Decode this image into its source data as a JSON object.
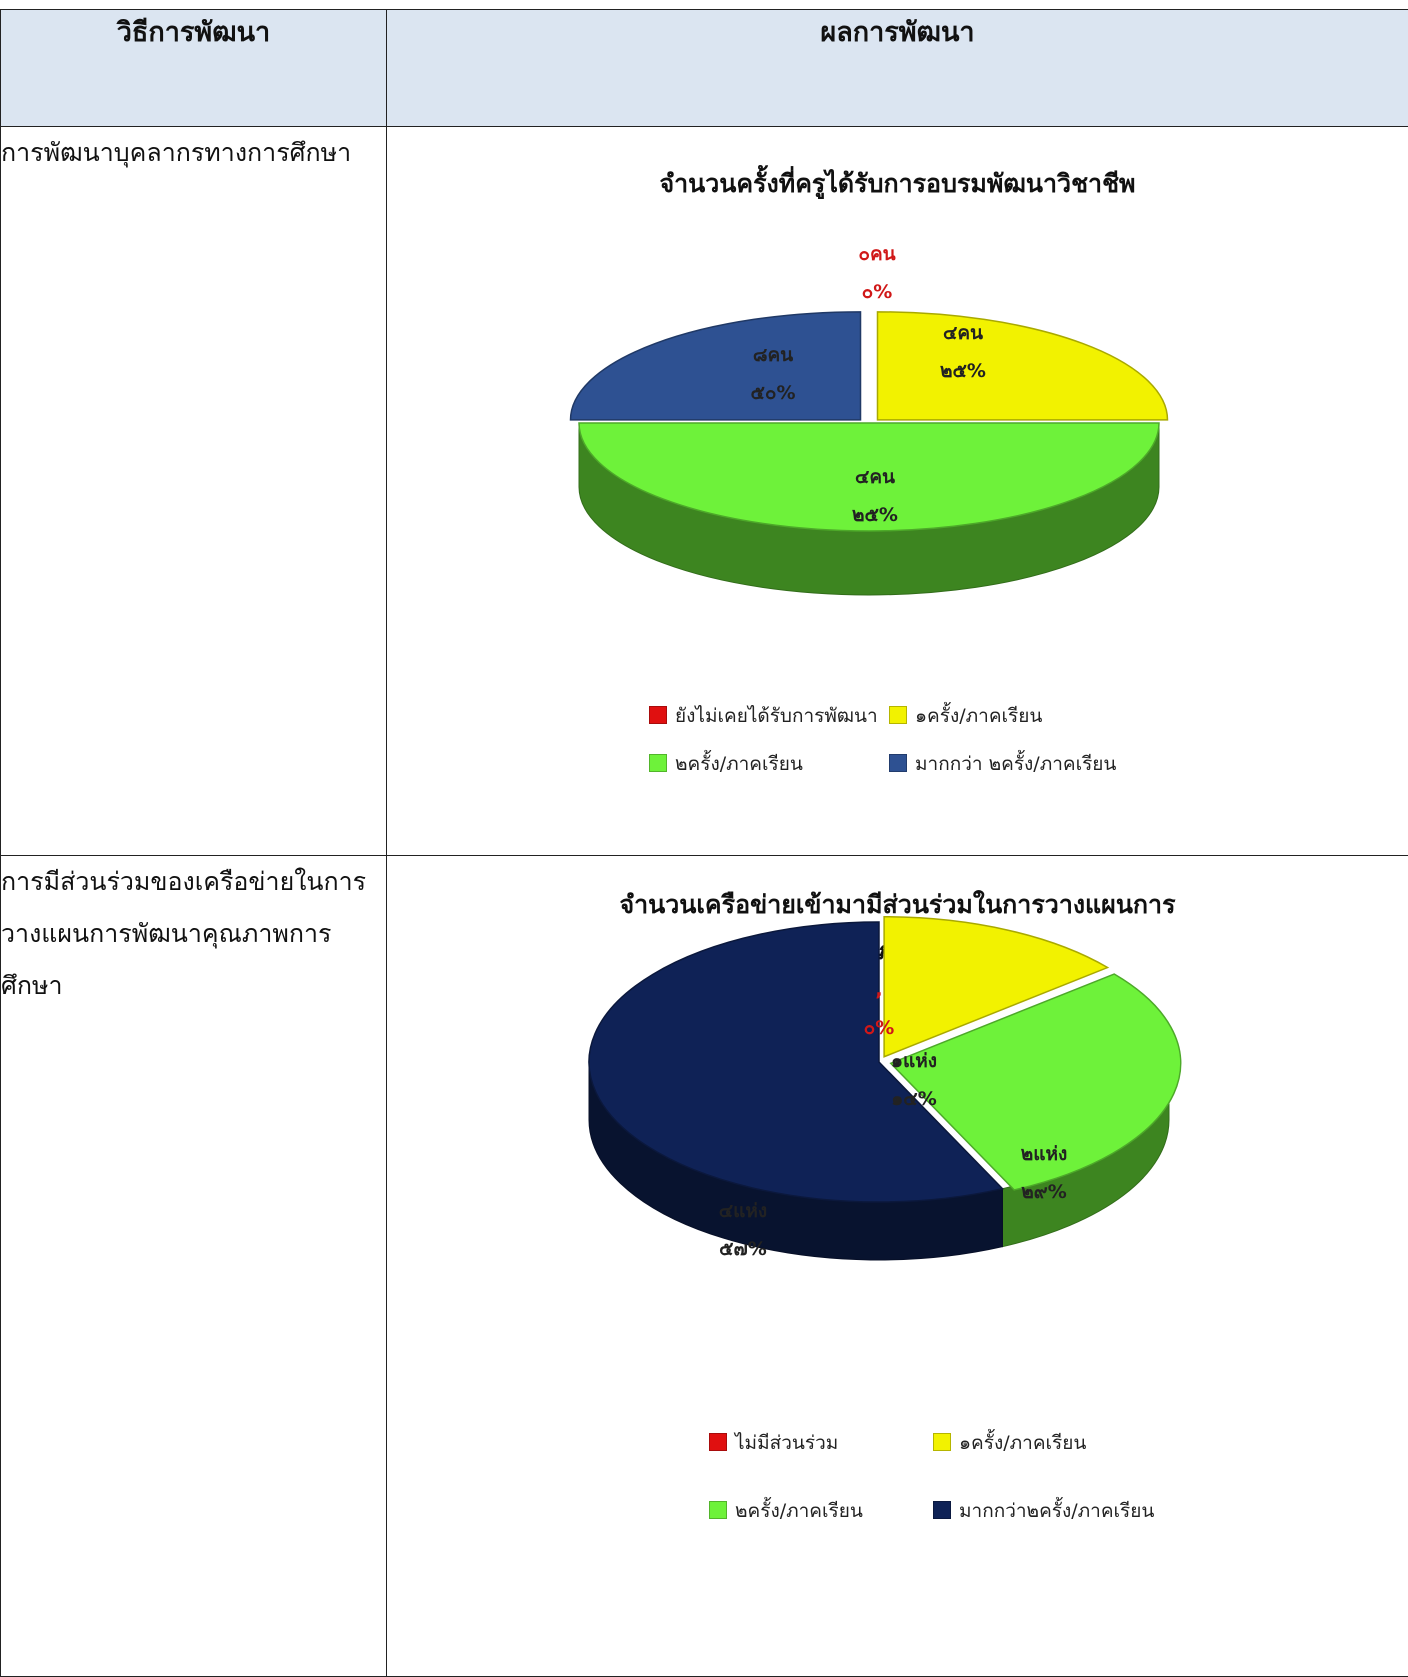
{
  "table": {
    "headers": {
      "method": "วิธีการพัฒนา",
      "result": "ผลการพัฒนา"
    },
    "rows": [
      {
        "method": "การพัฒนาบุคลากรทางการศึกษา"
      },
      {
        "method": "การมีส่วนร่วมของเครือข่ายในการวางแผนการพัฒนาคุณภาพการศึกษา"
      }
    ]
  },
  "chart_data": [
    {
      "type": "pie",
      "title": "จำนวนครั้งที่ครูได้รับการอบรมพัฒนาวิชาชีพ",
      "slices": [
        {
          "name": "ยังไม่เคยได้รับการพัฒนา",
          "count_label": "๐คน",
          "percent_label": "๐%",
          "value": 0,
          "color": "#e01010"
        },
        {
          "name": "๑ครั้ง/ภาคเรียน",
          "count_label": "๔คน",
          "percent_label": "๒๕%",
          "value": 25,
          "color": "#f2f200"
        },
        {
          "name": "๒ครั้ง/ภาคเรียน",
          "count_label": "๘คน",
          "percent_label": "๕๐%",
          "value": 50,
          "color": "#6ef23a"
        },
        {
          "name": "มากกว่า ๒ครั้ง/ภาคเรียน",
          "count_label": "๔คน",
          "percent_label": "๒๕%",
          "value": 25,
          "color": "#2e5192"
        }
      ],
      "legend_placement": "bottom"
    },
    {
      "type": "pie",
      "title": "จำนวนเครือข่ายเข้ามามีส่วนร่วมในการวางแผนการ\nพัฒนาคุณภาพการศึกษา",
      "slices": [
        {
          "name": "ไม่มีส่วนร่วม",
          "count_label": ",",
          "percent_label": "๐%",
          "value": 0,
          "color": "#e01010"
        },
        {
          "name": "๑ครั้ง/ภาคเรียน",
          "count_label": "๑แห่ง",
          "percent_label": "๑๔%",
          "value": 14,
          "color": "#f2f200"
        },
        {
          "name": "๒ครั้ง/ภาคเรียน",
          "count_label": "๒แห่ง",
          "percent_label": "๒๙%",
          "value": 29,
          "color": "#6ef23a"
        },
        {
          "name": "มากกว่า๒ครั้ง/ภาคเรียน",
          "count_label": "๔แห่ง",
          "percent_label": "๕๗%",
          "value": 57,
          "color": "#0f2256"
        }
      ],
      "legend_placement": "bottom"
    }
  ]
}
